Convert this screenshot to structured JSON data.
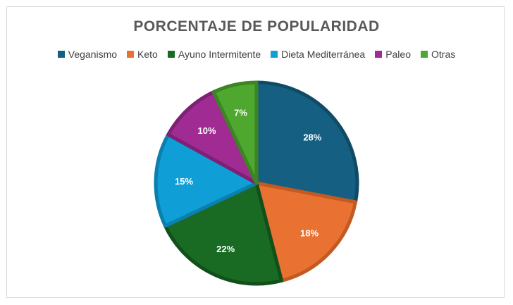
{
  "chart_data": {
    "type": "pie",
    "title": "PORCENTAJE DE POPULARIDAD",
    "legend_position": "top",
    "categories": [
      "Veganismo",
      "Keto",
      "Ayuno Intermitente",
      "Dieta Mediterránea",
      "Paleo",
      "Otras"
    ],
    "values": [
      28,
      18,
      22,
      15,
      10,
      7
    ],
    "data_labels": [
      "28%",
      "18%",
      "22%",
      "15%",
      "10%",
      "7%"
    ],
    "colors": [
      "#156082",
      "#E97132",
      "#196B24",
      "#0F9ED5",
      "#A02B93",
      "#4EA72E"
    ],
    "border_colors": [
      "#104B66",
      "#C25A22",
      "#124F1B",
      "#0B7FAD",
      "#7E2074",
      "#3C8424"
    ]
  }
}
